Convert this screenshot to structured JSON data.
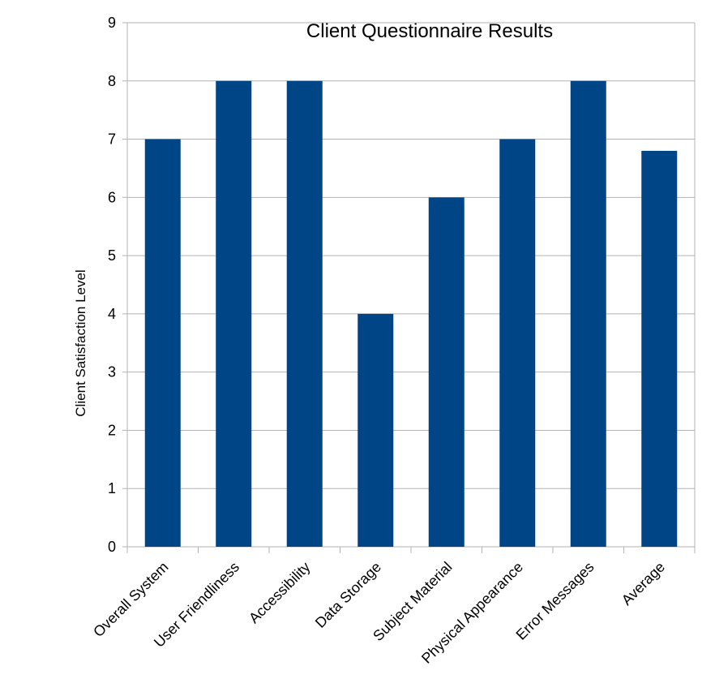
{
  "chart_data": {
    "type": "bar",
    "title": "Client Questionnaire Results",
    "xlabel": "",
    "ylabel": "Client Satisfaction Level",
    "categories": [
      "Overall System",
      "User Friendliness",
      "Accessibility",
      "Data Storage",
      "Subject Material",
      "Physical Appearance",
      "Error Messages",
      "Average"
    ],
    "values": [
      7,
      8,
      8,
      4,
      6,
      7,
      8,
      6.8
    ],
    "ylim": [
      0,
      9
    ],
    "yticks": [
      0,
      1,
      2,
      3,
      4,
      5,
      6,
      7,
      8,
      9
    ],
    "grid": true,
    "legend": "none",
    "bar_color": "#004586"
  }
}
